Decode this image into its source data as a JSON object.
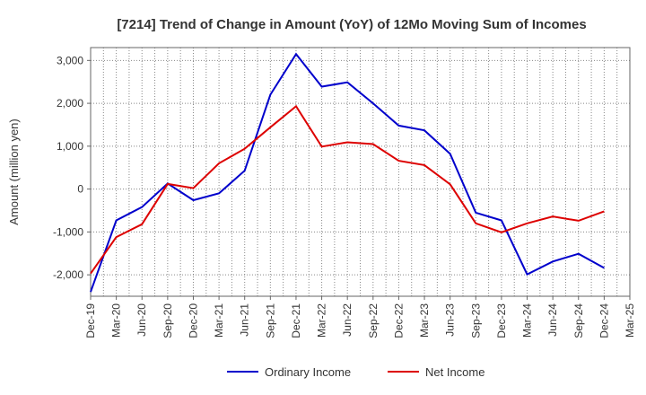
{
  "chart_data": {
    "type": "line",
    "title": "[7214]  Trend of Change in Amount (YoY) of 12Mo Moving Sum of Incomes",
    "xlabel": "",
    "ylabel": "Amount (million yen)",
    "ylim": [
      -2500,
      3300
    ],
    "yticks": [
      3000,
      2000,
      1000,
      0,
      -1000,
      -2000
    ],
    "ytick_labels": [
      "3,000",
      "2,000",
      "1,000",
      "0",
      "-1,000",
      "-2,000"
    ],
    "grid": true,
    "legend_position": "bottom-center",
    "categories": [
      "Dec-19",
      "Mar-20",
      "Jun-20",
      "Sep-20",
      "Dec-20",
      "Mar-21",
      "Jun-21",
      "Sep-21",
      "Dec-21",
      "Mar-22",
      "Jun-22",
      "Sep-22",
      "Dec-22",
      "Mar-23",
      "Jun-23",
      "Sep-23",
      "Dec-23",
      "Mar-24",
      "Jun-24",
      "Sep-24",
      "Dec-24",
      "Mar-25"
    ],
    "series": [
      {
        "name": "Ordinary Income",
        "color": "#0000cc",
        "values": [
          -2400,
          -730,
          -420,
          130,
          -260,
          -100,
          430,
          2200,
          3150,
          2390,
          2490,
          2000,
          1480,
          1370,
          820,
          -550,
          -730,
          -1990,
          -1690,
          -1510,
          -1840,
          null
        ]
      },
      {
        "name": "Net Income",
        "color": "#dd0000",
        "values": [
          -1970,
          -1120,
          -820,
          120,
          20,
          600,
          940,
          1440,
          1930,
          990,
          1090,
          1050,
          660,
          560,
          110,
          -800,
          -1010,
          -800,
          -640,
          -740,
          -520,
          null
        ]
      }
    ]
  }
}
